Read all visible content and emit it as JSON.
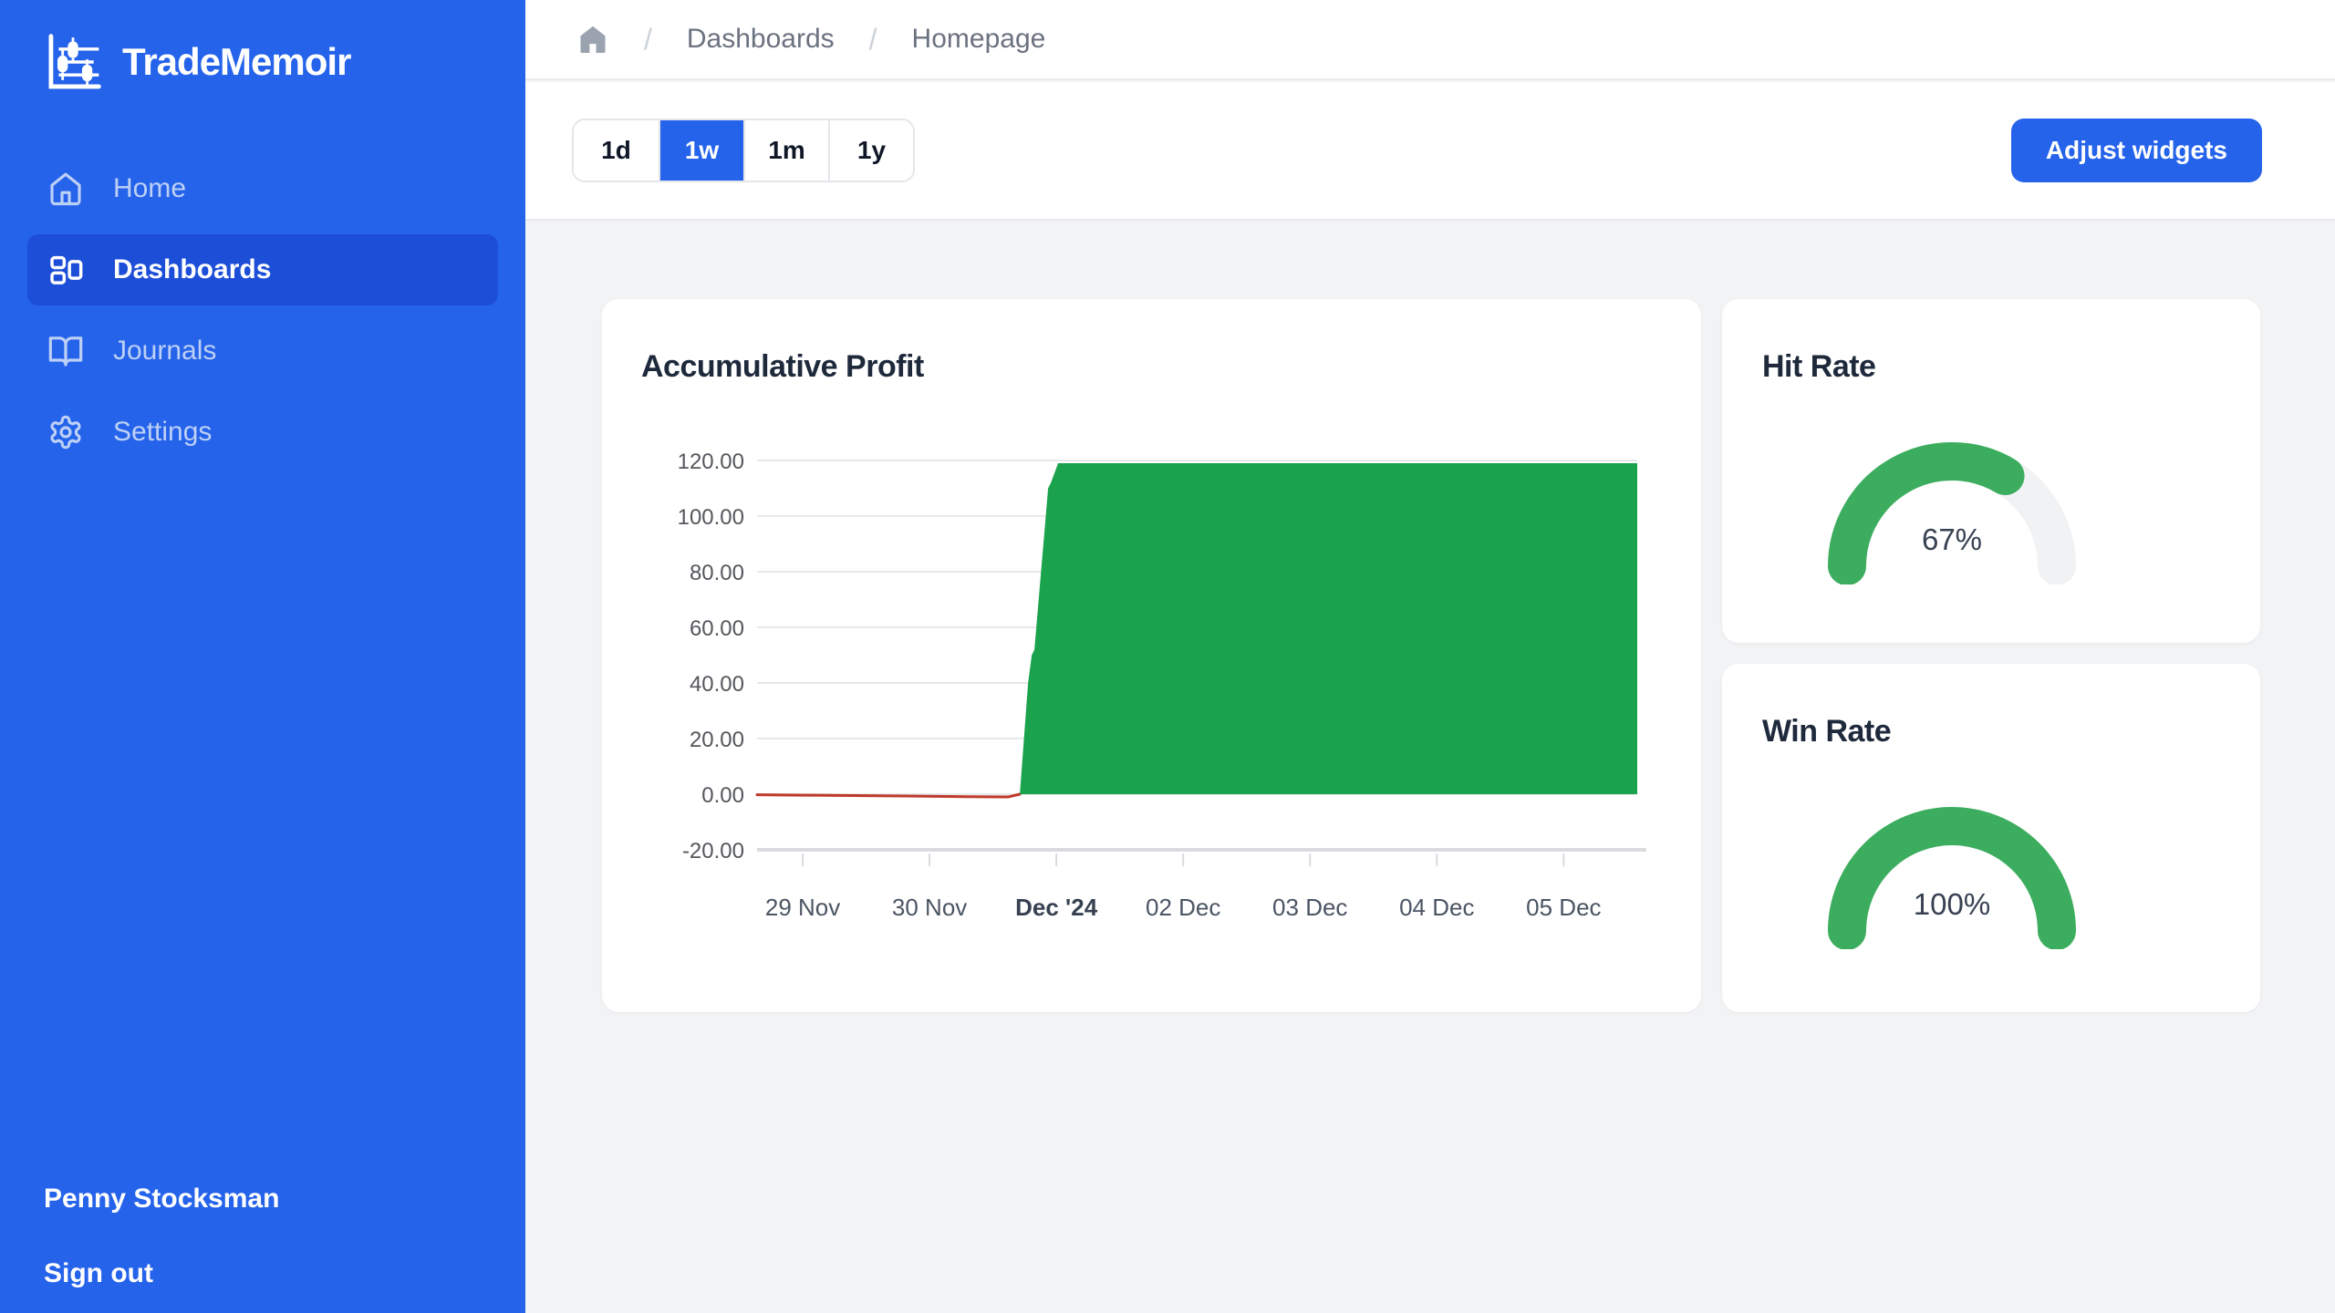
{
  "app": {
    "title": "TradeMemoir"
  },
  "sidebar": {
    "items": [
      {
        "label": "Home",
        "icon": "home-icon",
        "active": false
      },
      {
        "label": "Dashboards",
        "icon": "dashboard-icon",
        "active": true
      },
      {
        "label": "Journals",
        "icon": "book-open-icon",
        "active": false
      },
      {
        "label": "Settings",
        "icon": "gear-icon",
        "active": false
      }
    ],
    "user_name": "Penny Stocksman",
    "sign_out_label": "Sign out"
  },
  "breadcrumb": {
    "separator": "/",
    "items": [
      {
        "label": "Dashboards"
      },
      {
        "label": "Homepage"
      }
    ]
  },
  "toolbar": {
    "range_options": [
      {
        "label": "1d",
        "selected": false
      },
      {
        "label": "1w",
        "selected": true
      },
      {
        "label": "1m",
        "selected": false
      },
      {
        "label": "1y",
        "selected": false
      }
    ],
    "adjust_widgets_label": "Adjust widgets"
  },
  "colors": {
    "sidebar_bg": "#2563eb",
    "sidebar_active_bg": "#1d4ed8",
    "sidebar_inactive_text": "#bdd0f6",
    "accent_blue": "#2563eb",
    "page_bg": "#f2f3f5",
    "card_bg": "#ffffff",
    "title_text": "#1e293b",
    "grid_line": "#e7e8ea",
    "axis_line": "#d9dbdf",
    "axis_text": "#54575c",
    "chart_green": "#1ba24d",
    "chart_red": "#c0392b",
    "gauge_green": "#3cad5e",
    "gauge_track": "#f1f2f4",
    "gauge_value_text": "#374151"
  },
  "chart_data": [
    {
      "type": "area",
      "title": "Accumulative Profit",
      "xlabel": "",
      "ylabel": "",
      "ylim": [
        -20,
        120
      ],
      "xlim": [
        -0.36,
        6.58
      ],
      "grid": "horizontal",
      "legend": "none",
      "y_ticks": [
        120,
        100,
        80,
        60,
        40,
        20,
        0,
        -20
      ],
      "y_tick_decimals": 2,
      "x_tick_positions": [
        0,
        1,
        2,
        3,
        4,
        5,
        6
      ],
      "x_tick_labels": [
        "29 Nov",
        "30 Nov",
        "Dec '24",
        "02 Dec",
        "03 Dec",
        "04 Dec",
        "05 Dec"
      ],
      "bold_x_label": "Dec '24",
      "series": [
        {
          "name": "accumulative-profit-negative",
          "style": "line",
          "color": "#c0392b",
          "points": [
            [
              -0.36,
              -0.2
            ],
            [
              0,
              -0.35
            ],
            [
              0.7,
              -0.6
            ],
            [
              1.3,
              -0.9
            ],
            [
              1.62,
              -1.0
            ],
            [
              1.712,
              0
            ]
          ]
        },
        {
          "name": "accumulative-profit-positive",
          "style": "area",
          "color": "#1ba24d",
          "points": [
            [
              1.712,
              0
            ],
            [
              1.777,
              40
            ],
            [
              1.806,
              50
            ],
            [
              1.827,
              52
            ],
            [
              1.935,
              110
            ],
            [
              1.957,
              112
            ],
            [
              2.014,
              119
            ],
            [
              6.58,
              119
            ]
          ]
        }
      ]
    },
    {
      "type": "gauge",
      "title": "Hit Rate",
      "value_pct": 67,
      "value_label": "67%"
    },
    {
      "type": "gauge",
      "title": "Win Rate",
      "value_pct": 100,
      "value_label": "100%"
    }
  ]
}
